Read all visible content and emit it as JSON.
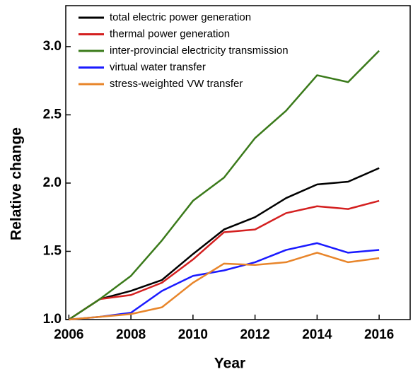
{
  "chart_data": {
    "type": "line",
    "x_label": "Year",
    "y_label": "Relative change",
    "x": [
      2006,
      2007,
      2008,
      2009,
      2010,
      2011,
      2012,
      2013,
      2014,
      2015,
      2016
    ],
    "series": [
      {
        "name": "total electric power generation",
        "color": "#000000",
        "values": [
          1.0,
          1.15,
          1.21,
          1.29,
          1.48,
          1.66,
          1.75,
          1.89,
          1.99,
          2.01,
          2.11
        ]
      },
      {
        "name": "thermal power generation",
        "color": "#d42020",
        "values": [
          1.0,
          1.15,
          1.18,
          1.27,
          1.44,
          1.64,
          1.66,
          1.78,
          1.83,
          1.81,
          1.87
        ]
      },
      {
        "name": "inter-provincial electricity transmission",
        "color": "#3a7a1a",
        "values": [
          1.0,
          1.15,
          1.32,
          1.58,
          1.87,
          2.04,
          2.33,
          2.53,
          2.79,
          2.74,
          2.97
        ]
      },
      {
        "name": "virtual water transfer",
        "color": "#1a1aff",
        "values": [
          1.0,
          1.02,
          1.05,
          1.21,
          1.32,
          1.36,
          1.42,
          1.51,
          1.56,
          1.49,
          1.51
        ]
      },
      {
        "name": "stress-weighted VW transfer",
        "color": "#e8852a",
        "values": [
          1.0,
          1.02,
          1.04,
          1.09,
          1.27,
          1.41,
          1.4,
          1.42,
          1.49,
          1.42,
          1.45
        ]
      }
    ],
    "xlim": [
      2005.9,
      2017
    ],
    "ylim": [
      1.0,
      3.3
    ],
    "xticks": [
      2006,
      2008,
      2010,
      2012,
      2014,
      2016
    ],
    "yticks": [
      {
        "value": 1.0,
        "label": "1.0"
      },
      {
        "value": 1.5,
        "label": "1.5"
      },
      {
        "value": 2.0,
        "label": "2.0"
      },
      {
        "value": 2.5,
        "label": "2.5"
      },
      {
        "value": 3.0,
        "label": "3.0"
      }
    ],
    "legend": "upper left"
  }
}
